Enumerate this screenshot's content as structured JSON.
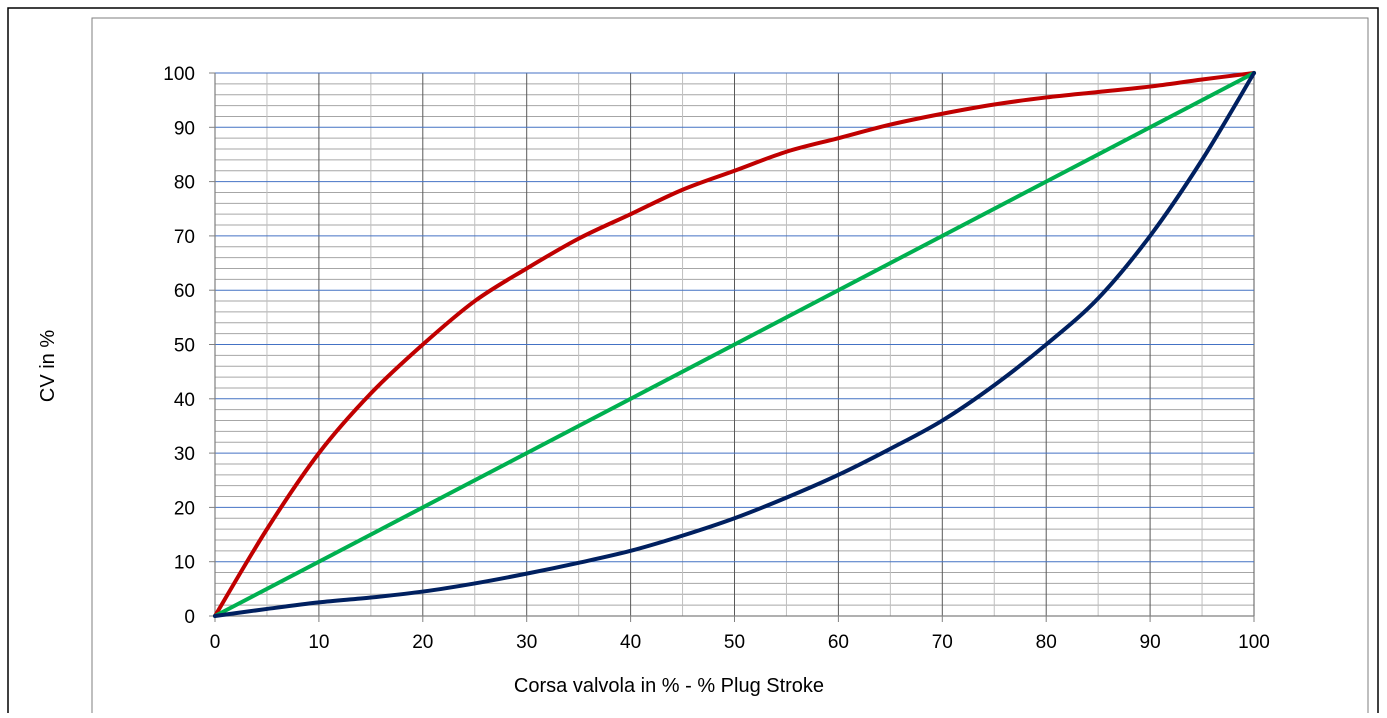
{
  "colors": {
    "outer_border": "#000000",
    "inner_border": "#7f7f7f",
    "major_grid_x": "#595959",
    "minor_grid_x": "#bfbfbf",
    "major_grid_y": "#4472c4",
    "minor_grid_y": "#a6a6a6"
  },
  "chart_data": {
    "type": "line",
    "title": "",
    "xlabel": "Corsa valvola in % - % Plug Stroke",
    "ylabel": "CV in %",
    "xlim": [
      0,
      100
    ],
    "ylim": [
      0,
      100
    ],
    "x_ticks": [
      "0",
      "10",
      "20",
      "30",
      "40",
      "50",
      "60",
      "70",
      "80",
      "90",
      "100"
    ],
    "y_ticks": [
      "0",
      "10",
      "20",
      "30",
      "40",
      "50",
      "60",
      "70",
      "80",
      "90",
      "100"
    ],
    "grid": true,
    "grid_minor_x_step": 5,
    "grid_minor_y_step": 2,
    "legend": "none",
    "series": [
      {
        "color": "#c00000",
        "x": [
          0,
          5,
          10,
          15,
          20,
          25,
          30,
          35,
          40,
          45,
          50,
          55,
          60,
          65,
          70,
          75,
          80,
          85,
          90,
          95,
          100
        ],
        "y": [
          0,
          16,
          30,
          41,
          50,
          58,
          64,
          69.5,
          74,
          78.5,
          82,
          85.5,
          88,
          90.5,
          92.5,
          94.2,
          95.5,
          96.5,
          97.5,
          98.8,
          100
        ]
      },
      {
        "color": "#00b050",
        "x": [
          0,
          100
        ],
        "y": [
          0,
          100
        ]
      },
      {
        "color": "#002060",
        "x": [
          0,
          5,
          10,
          15,
          20,
          25,
          30,
          35,
          40,
          45,
          50,
          55,
          60,
          65,
          70,
          75,
          80,
          85,
          90,
          95,
          100
        ],
        "y": [
          0,
          1.3,
          2.5,
          3.4,
          4.5,
          6,
          7.8,
          9.8,
          12,
          14.8,
          18,
          21.8,
          26,
          30.8,
          36,
          42.5,
          50,
          58.5,
          70,
          84,
          100
        ]
      }
    ]
  }
}
